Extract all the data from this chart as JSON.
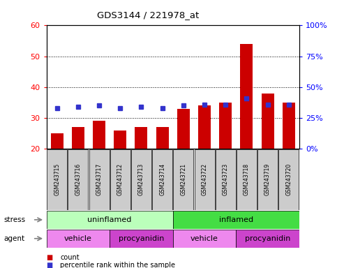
{
  "title": "GDS3144 / 221978_at",
  "samples": [
    "GSM243715",
    "GSM243716",
    "GSM243717",
    "GSM243712",
    "GSM243713",
    "GSM243714",
    "GSM243721",
    "GSM243722",
    "GSM243723",
    "GSM243718",
    "GSM243719",
    "GSM243720"
  ],
  "counts": [
    25,
    27,
    29,
    26,
    27,
    27,
    33,
    34,
    35,
    54,
    38,
    35
  ],
  "percentiles": [
    33,
    34,
    35,
    33,
    34,
    33,
    35,
    36,
    36,
    41,
    36,
    36
  ],
  "bar_color": "#cc0000",
  "dot_color": "#3333cc",
  "ylim_left": [
    20,
    60
  ],
  "ylim_right": [
    0,
    100
  ],
  "yticks_left": [
    20,
    30,
    40,
    50,
    60
  ],
  "yticks_right": [
    0,
    25,
    50,
    75,
    100
  ],
  "stress_groups": [
    {
      "label": "uninflamed",
      "start": 0,
      "end": 6,
      "color": "#bbffbb"
    },
    {
      "label": "inflamed",
      "start": 6,
      "end": 12,
      "color": "#44dd44"
    }
  ],
  "agent_groups": [
    {
      "label": "vehicle",
      "start": 0,
      "end": 3,
      "color": "#ee88ee"
    },
    {
      "label": "procyanidin",
      "start": 3,
      "end": 6,
      "color": "#cc44cc"
    },
    {
      "label": "vehicle",
      "start": 6,
      "end": 9,
      "color": "#ee88ee"
    },
    {
      "label": "procyanidin",
      "start": 9,
      "end": 12,
      "color": "#cc44cc"
    }
  ],
  "sample_col_color": "#cccccc",
  "legend_count_label": "count",
  "legend_pct_label": "percentile rank within the sample",
  "stress_label": "stress",
  "agent_label": "agent",
  "background_color": "#ffffff"
}
